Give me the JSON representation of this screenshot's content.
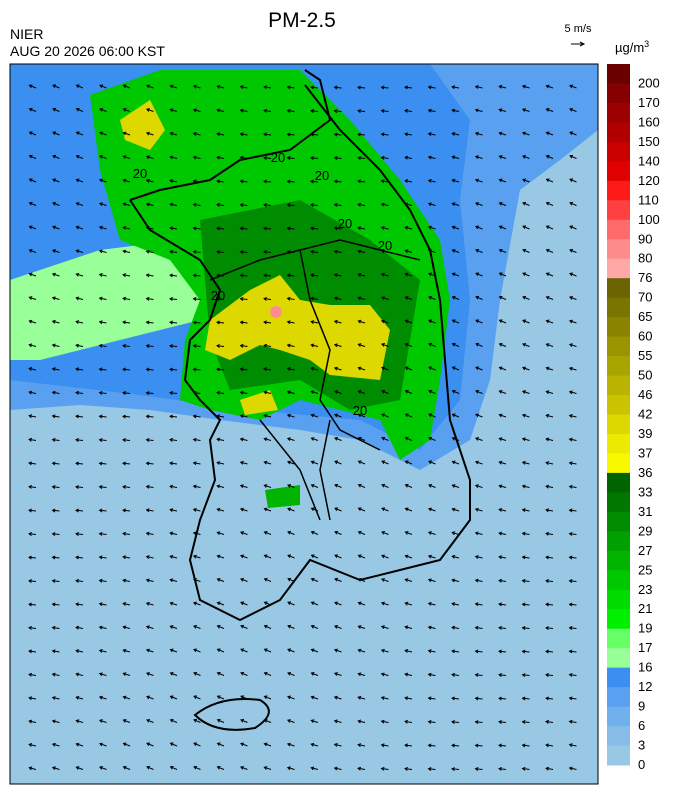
{
  "header": {
    "title": "PM-2.5",
    "source": "NIER",
    "datetime": "AUG 20 2026 06:00 KST",
    "wind_scale": "5 m/s"
  },
  "legend": {
    "unit": "µg/m",
    "unit_superscript": "3",
    "labels": [
      "200",
      "170",
      "160",
      "150",
      "140",
      "120",
      "110",
      "100",
      "90",
      "80",
      "76",
      "70",
      "65",
      "60",
      "55",
      "50",
      "46",
      "42",
      "39",
      "37",
      "36",
      "33",
      "31",
      "29",
      "27",
      "25",
      "23",
      "21",
      "19",
      "17",
      "16",
      "12",
      "9",
      "6",
      "3",
      "0"
    ],
    "colors": [
      "#6b0000",
      "#850000",
      "#9c0000",
      "#b00000",
      "#c80000",
      "#e00000",
      "#ff1a1a",
      "#ff4040",
      "#ff6a6a",
      "#ff8c8c",
      "#ffa8a8",
      "#6b6400",
      "#7a7400",
      "#8a8400",
      "#9a9400",
      "#aaa400",
      "#bab400",
      "#cac400",
      "#dcd800",
      "#ecea00",
      "#f8f800",
      "#006400",
      "#007800",
      "#008c00",
      "#00a000",
      "#00b400",
      "#00c800",
      "#00dc00",
      "#00f000",
      "#66ff66",
      "#99ff99",
      "#3a8ff0",
      "#5aa0f0",
      "#70b0ee",
      "#85bce8",
      "#98c8e4"
    ]
  },
  "map": {
    "contour_labels": [
      "20",
      "20",
      "20",
      "20",
      "20",
      "20",
      "20"
    ]
  }
}
